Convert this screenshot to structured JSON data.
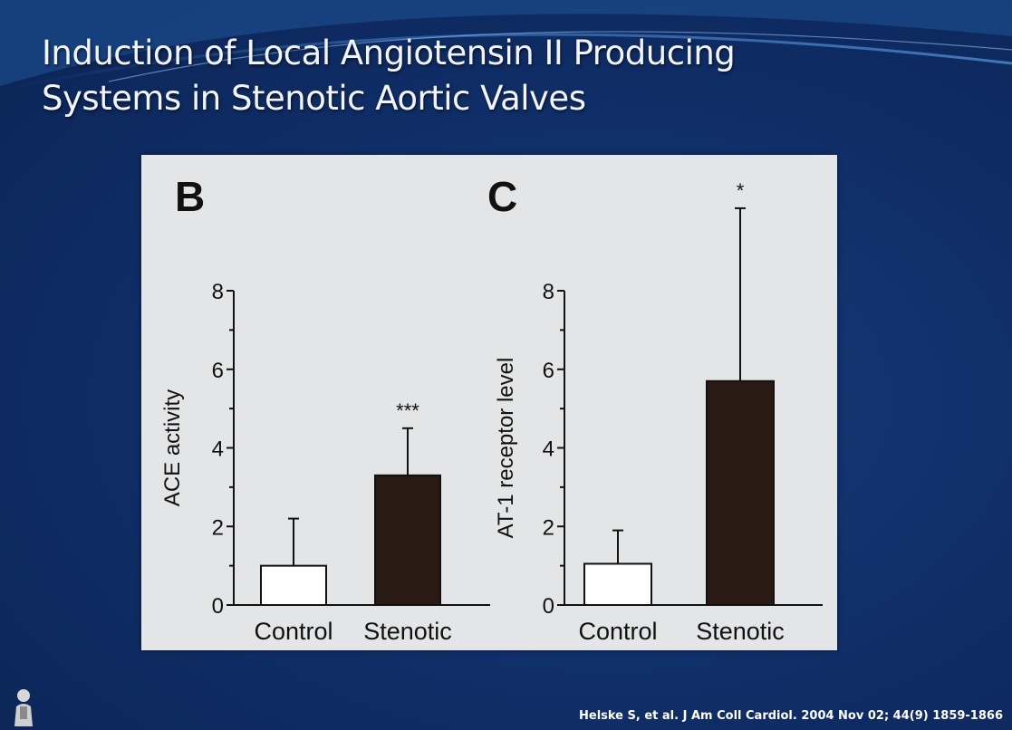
{
  "slide": {
    "title_line1": "Induction of Local Angiotensin II Producing",
    "title_line2": "Systems in Stenotic Aortic Valves",
    "citation": "Helske S, et al. J Am Coll Cardiol. 2004 Nov 02; 44(9) 1859-1866"
  },
  "colors": {
    "background": "#10306a",
    "panel": "#e4e5e6",
    "control_fill": "#ffffff",
    "stenotic_fill": "#2a1a14",
    "ink": "#111111"
  },
  "chart_data": [
    {
      "type": "bar",
      "panel_label": "B",
      "categories": [
        "Control",
        "Stenotic"
      ],
      "values": [
        1.0,
        3.3
      ],
      "error": [
        1.2,
        1.2
      ],
      "significance": [
        "",
        "***"
      ],
      "ylabel": "ACE activity",
      "ylim": [
        0,
        8
      ],
      "yticks": [
        0,
        2,
        4,
        6,
        8
      ],
      "grid": false
    },
    {
      "type": "bar",
      "panel_label": "C",
      "categories": [
        "Control",
        "Stenotic"
      ],
      "values": [
        1.05,
        5.7
      ],
      "error": [
        0.85,
        4.4
      ],
      "significance": [
        "",
        "*"
      ],
      "ylabel": "AT-1 receptor level",
      "ylim": [
        0,
        8
      ],
      "yticks": [
        0,
        2,
        4,
        6,
        8
      ],
      "grid": false
    }
  ]
}
